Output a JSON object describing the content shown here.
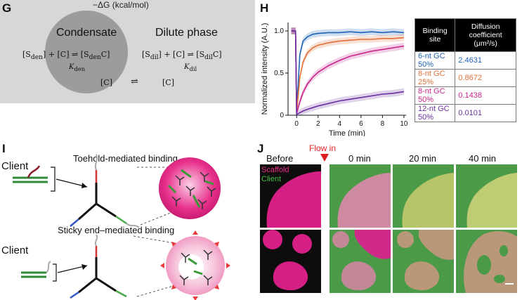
{
  "panels": {
    "G": "G",
    "H": "H",
    "I": "I",
    "J": "J"
  },
  "top_cut": "−ΔG (kcal/mol)",
  "G": {
    "condensate": "Condensate",
    "dilute": "Dilute phase",
    "eq_den_left": "[S",
    "eq_den_sub": "den",
    "eq_den_mid": "] + [C]",
    "eq_den_right": "[S",
    "eq_den_right_sub": "den",
    "eq_den_right_end": "C]",
    "k_den": "K",
    "k_den_sub": "den",
    "eq_dil_left": "[S",
    "eq_dil_sub": "dil",
    "eq_dil_mid": "] + [C]",
    "eq_dil_right": "[S",
    "eq_dil_right_sub": "dil",
    "eq_dil_right_end": "C]",
    "k_dil": "K",
    "k_dil_sub": "dil",
    "c_left": "[C]",
    "c_right": "[C]"
  },
  "H": {
    "ylabel": "Normalized intensity (A.U.)",
    "xlabel": "Time (min)",
    "table_header_site": "Binding site",
    "table_header_diff": "Diffusion coefficient (μm²/s)",
    "rows": [
      {
        "site": "6-nt GC 50%",
        "value": "2.4631",
        "color": "#1f63b5"
      },
      {
        "site": "8-nt GC 25%",
        "value": "0.8672",
        "color": "#e2703a"
      },
      {
        "site": "8-nt GC 50%",
        "value": "0.1438",
        "color": "#c8238a"
      },
      {
        "site": "12-nt GC 50%",
        "value": "0.0101",
        "color": "#6b2fa0"
      }
    ]
  },
  "chart_data": {
    "type": "line",
    "xlabel": "Time (min)",
    "ylabel": "Normalized intensity (A.U.)",
    "xlim": [
      -0.8,
      10.2
    ],
    "ylim": [
      0,
      1.1
    ],
    "xticks": [
      "0",
      "2",
      "4",
      "6",
      "8",
      "10"
    ],
    "yticks": [
      "0",
      "0.5",
      "1.0"
    ],
    "series": [
      {
        "name": "6-nt GC 50%",
        "color": "#1f63b5",
        "x": [
          -0.5,
          -0.1,
          0,
          0.3,
          0.6,
          1,
          1.5,
          2,
          3,
          4,
          5,
          6,
          7,
          8,
          9,
          10
        ],
        "y": [
          1.0,
          1.0,
          0.05,
          0.72,
          0.88,
          0.93,
          0.96,
          0.97,
          0.98,
          0.98,
          0.99,
          0.98,
          0.99,
          0.98,
          0.99,
          0.98
        ]
      },
      {
        "name": "8-nt GC 25%",
        "color": "#e2703a",
        "x": [
          -0.5,
          -0.1,
          0,
          0.3,
          0.6,
          1,
          1.5,
          2,
          3,
          4,
          5,
          6,
          7,
          8,
          9,
          10
        ],
        "y": [
          1.0,
          1.0,
          0.03,
          0.45,
          0.63,
          0.74,
          0.8,
          0.83,
          0.86,
          0.88,
          0.89,
          0.9,
          0.9,
          0.91,
          0.91,
          0.92
        ]
      },
      {
        "name": "8-nt GC 50%",
        "color": "#c8238a",
        "x": [
          -0.5,
          -0.1,
          0,
          0.3,
          0.6,
          1,
          1.5,
          2,
          3,
          4,
          5,
          6,
          7,
          8,
          9,
          10
        ],
        "y": [
          1.0,
          1.0,
          0.02,
          0.16,
          0.27,
          0.37,
          0.45,
          0.51,
          0.59,
          0.65,
          0.7,
          0.73,
          0.76,
          0.78,
          0.8,
          0.82
        ]
      },
      {
        "name": "12-nt GC 50%",
        "color": "#6b2fa0",
        "x": [
          -0.5,
          -0.1,
          0,
          0.3,
          0.6,
          1,
          1.5,
          2,
          3,
          4,
          5,
          6,
          7,
          8,
          9,
          10
        ],
        "y": [
          1.0,
          1.0,
          0.01,
          0.03,
          0.05,
          0.07,
          0.09,
          0.11,
          0.14,
          0.17,
          0.19,
          0.21,
          0.23,
          0.25,
          0.26,
          0.28
        ]
      }
    ]
  },
  "I": {
    "client1": "Client",
    "title1": "Toehold-mediated binding",
    "client2": "Client",
    "title2": "Sticky end–mediated binding"
  },
  "J": {
    "flow_in": "Flow in",
    "before": "Before",
    "t0": "0 min",
    "t20": "20 min",
    "t40": "40 min",
    "scaffold": "Scaffold",
    "client": "Client"
  },
  "colors": {
    "magenta": "#e8308c",
    "green_bg": "#4a9a48",
    "condensate_gray": "#9c9c9c",
    "panelG_bg": "#d7d7d7"
  }
}
